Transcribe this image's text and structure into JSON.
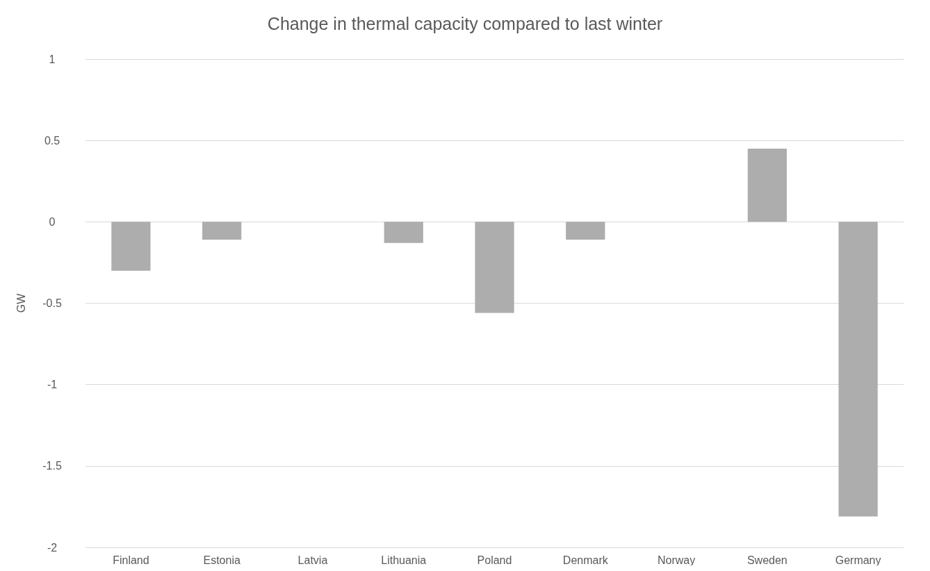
{
  "chart_data": {
    "type": "bar",
    "title": "Change in thermal capacity compared to last winter",
    "ylabel": "GW",
    "categories": [
      "Finland",
      "Estonia",
      "Latvia",
      "Lithuania",
      "Poland",
      "Denmark",
      "Norway",
      "Sweden",
      "Germany"
    ],
    "values": [
      -0.3,
      -0.11,
      0,
      -0.13,
      -0.56,
      -0.11,
      0,
      0.45,
      -1.81
    ],
    "color": "#adadad",
    "ylim": [
      -2,
      1
    ],
    "yticks": [
      -2,
      -1.5,
      -1,
      -0.5,
      0,
      0.5,
      1
    ],
    "grid": "y"
  }
}
